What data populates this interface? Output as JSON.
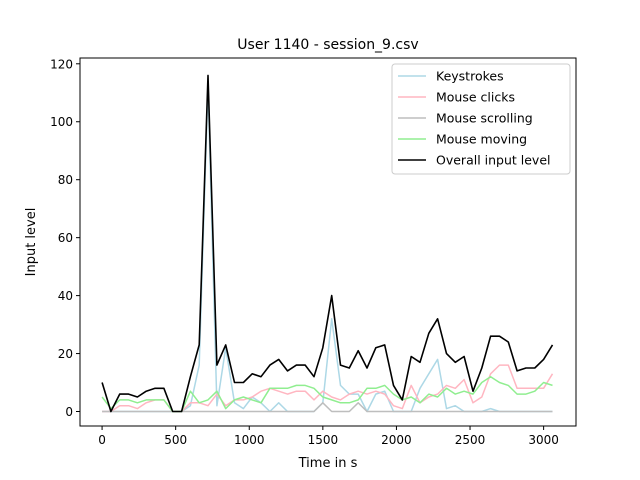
{
  "chart_data": {
    "type": "line",
    "title": "User 1140 - session_9.csv",
    "xlabel": "Time in s",
    "ylabel": "Input level",
    "xlim": [
      -150,
      3220
    ],
    "ylim": [
      -5,
      122
    ],
    "xticks": [
      0,
      500,
      1000,
      1500,
      2000,
      2500,
      3000
    ],
    "yticks": [
      0,
      20,
      40,
      60,
      80,
      100,
      120
    ],
    "legend_position": "top-right",
    "x": [
      0,
      60,
      120,
      180,
      240,
      300,
      360,
      420,
      480,
      540,
      600,
      660,
      720,
      780,
      840,
      900,
      960,
      1020,
      1080,
      1140,
      1200,
      1260,
      1320,
      1380,
      1440,
      1500,
      1560,
      1620,
      1680,
      1740,
      1800,
      1860,
      1920,
      1980,
      2040,
      2100,
      2160,
      2220,
      2280,
      2340,
      2400,
      2460,
      2520,
      2580,
      2640,
      2700,
      2760,
      2820,
      2880,
      2940,
      3000,
      3060
    ],
    "series": [
      {
        "name": "Keystrokes",
        "color": "#add8e6",
        "values": [
          0,
          0,
          0,
          0,
          0,
          0,
          0,
          0,
          0,
          0,
          2,
          16,
          112,
          2,
          22,
          3,
          1,
          5,
          3,
          0,
          3,
          0,
          0,
          0,
          0,
          3,
          32,
          9,
          6,
          6,
          0,
          6,
          7,
          0,
          0,
          0,
          8,
          13,
          18,
          1,
          2,
          0,
          0,
          0,
          1,
          0,
          0,
          0,
          0,
          0,
          0,
          0
        ]
      },
      {
        "name": "Mouse clicks",
        "color": "#ffb6c1",
        "values": [
          0,
          0,
          2,
          2,
          1,
          3,
          4,
          4,
          0,
          0,
          3,
          3,
          2,
          6,
          2,
          4,
          4,
          5,
          7,
          8,
          7,
          6,
          7,
          7,
          4,
          7,
          5,
          4,
          6,
          7,
          6,
          7,
          6,
          2,
          1,
          9,
          3,
          5,
          6,
          9,
          8,
          11,
          3,
          5,
          13,
          16,
          16,
          8,
          8,
          8,
          8,
          13
        ]
      },
      {
        "name": "Mouse scrolling",
        "color": "#bebebe",
        "values": [
          0,
          0,
          0,
          0,
          0,
          0,
          0,
          0,
          0,
          0,
          0,
          0,
          0,
          0,
          0,
          0,
          0,
          0,
          0,
          0,
          0,
          0,
          0,
          0,
          0,
          3,
          0,
          0,
          0,
          3,
          0,
          0,
          0,
          0,
          0,
          0,
          0,
          0,
          0,
          0,
          0,
          0,
          0,
          0,
          0,
          0,
          0,
          0,
          0,
          0,
          0,
          0
        ]
      },
      {
        "name": "Mouse moving",
        "color": "#90ee90",
        "values": [
          5,
          1,
          4,
          4,
          3,
          4,
          4,
          4,
          0,
          0,
          7,
          3,
          4,
          7,
          1,
          4,
          5,
          4,
          3,
          8,
          8,
          8,
          9,
          9,
          8,
          5,
          4,
          3,
          3,
          4,
          8,
          8,
          9,
          6,
          4,
          5,
          3,
          6,
          5,
          8,
          6,
          7,
          6,
          10,
          12,
          10,
          9,
          6,
          6,
          7,
          10,
          9
        ]
      },
      {
        "name": "Overall input level",
        "color": "#000000",
        "values": [
          10,
          0,
          6,
          6,
          5,
          7,
          8,
          8,
          0,
          0,
          12,
          23,
          116,
          16,
          23,
          10,
          10,
          13,
          12,
          16,
          18,
          14,
          16,
          16,
          12,
          22,
          40,
          16,
          15,
          21,
          15,
          22,
          23,
          9,
          4,
          19,
          17,
          27,
          32,
          20,
          17,
          19,
          7,
          15,
          26,
          26,
          24,
          14,
          15,
          15,
          18,
          23
        ]
      }
    ]
  }
}
